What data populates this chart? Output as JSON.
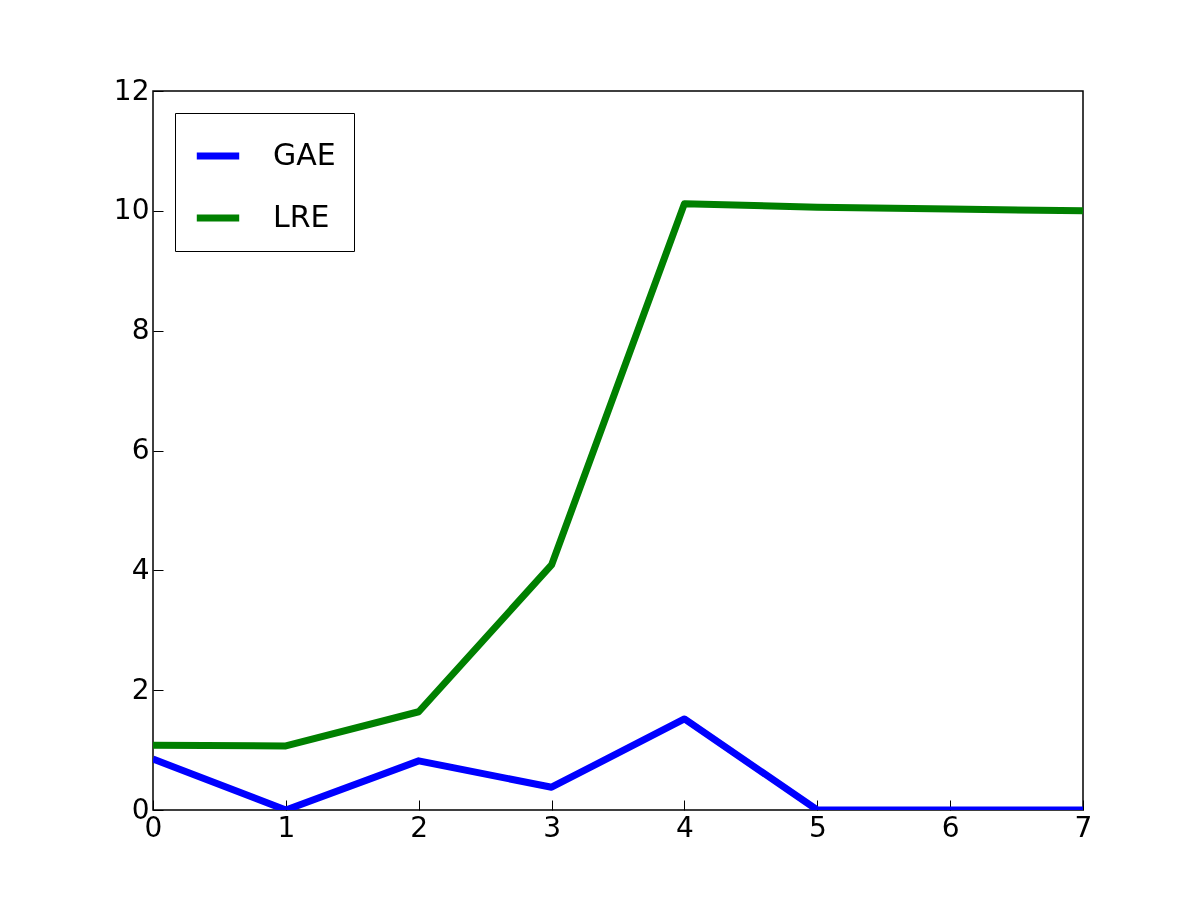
{
  "chart_data": {
    "type": "line",
    "x": [
      0,
      1,
      2,
      3,
      4,
      5,
      6,
      7
    ],
    "series": [
      {
        "name": "GAE",
        "color": "#0000ff",
        "values": [
          0.85,
          0,
          0.82,
          0.38,
          1.52,
          0,
          0,
          0
        ]
      },
      {
        "name": "LRE",
        "color": "#008000",
        "values": [
          1.08,
          1.07,
          1.64,
          4.09,
          10.12,
          10.06,
          10.03,
          10.0
        ]
      }
    ],
    "xlim": [
      0,
      7
    ],
    "xticks": [
      0,
      1,
      2,
      3,
      4,
      5,
      6,
      7
    ],
    "ylim": [
      0,
      12
    ],
    "yticks": [
      0,
      2,
      4,
      6,
      8,
      10,
      12
    ],
    "grid": false,
    "legend": "top left",
    "marker": "none",
    "line_style": "solid"
  }
}
